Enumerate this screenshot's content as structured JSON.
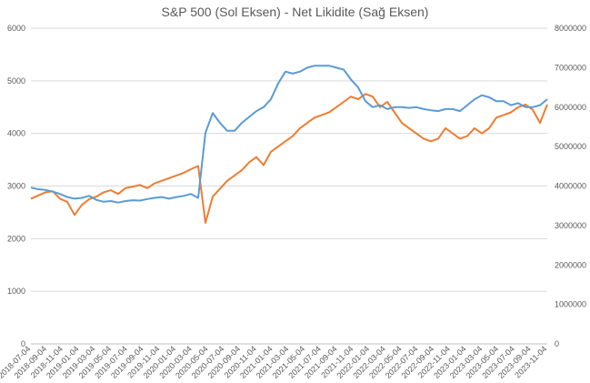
{
  "chart_data": {
    "type": "line",
    "title": "S&P 500 (Sol Eksen) - Net Likidite (Sağ Eksen)",
    "xlabel": "",
    "ylabel": "",
    "y_left": {
      "range": [
        0,
        6000
      ],
      "ticks": [
        "0",
        "1000",
        "2000",
        "3000",
        "4000",
        "5000",
        "6000"
      ]
    },
    "y_right": {
      "range": [
        0,
        8000000
      ],
      "ticks": [
        "0",
        "1000000",
        "2000000",
        "3000000",
        "4000000",
        "5000000",
        "6000000",
        "7000000",
        "8000000"
      ]
    },
    "grid": true,
    "legend": "none",
    "x_ticks": [
      "2018-07-04",
      "2018-09-04",
      "2018-11-04",
      "2019-01-04",
      "2019-03-04",
      "2019-05-04",
      "2019-07-04",
      "2019-09-04",
      "2019-11-04",
      "2020-01-04",
      "2020-03-04",
      "2020-05-04",
      "2020-07-04",
      "2020-09-04",
      "2020-11-04",
      "2021-01-04",
      "2021-03-04",
      "2021-05-04",
      "2021-07-04",
      "2021-09-04",
      "2021-11-04",
      "2022-01-04",
      "2022-03-04",
      "2022-05-04",
      "2022-07-04",
      "2022-09-04",
      "2022-11-04",
      "2023-01-04",
      "2023-03-04",
      "2023-05-04",
      "2023-07-04",
      "2023-09-04",
      "2023-11-04"
    ],
    "series": [
      {
        "axis": "left",
        "color": "#ED7D31",
        "values": [
          2760,
          2820,
          2880,
          2900,
          2760,
          2700,
          2450,
          2640,
          2750,
          2800,
          2880,
          2920,
          2850,
          2960,
          2990,
          3020,
          2960,
          3050,
          3100,
          3150,
          3200,
          3250,
          3320,
          3380,
          2300,
          2800,
          2950,
          3100,
          3200,
          3300,
          3450,
          3550,
          3400,
          3650,
          3750,
          3850,
          3950,
          4100,
          4200,
          4300,
          4350,
          4400,
          4500,
          4600,
          4700,
          4650,
          4750,
          4700,
          4500,
          4600,
          4400,
          4200,
          4100,
          4000,
          3900,
          3850,
          3900,
          4100,
          4000,
          3900,
          3950,
          4100,
          4000,
          4100,
          4300,
          4350,
          4400,
          4500,
          4550,
          4450,
          4200,
          4550
        ]
      },
      {
        "axis": "right",
        "color": "#5B9BD5",
        "values": [
          3960000,
          3920000,
          3900000,
          3860000,
          3800000,
          3720000,
          3680000,
          3700000,
          3750000,
          3650000,
          3600000,
          3620000,
          3580000,
          3620000,
          3640000,
          3630000,
          3670000,
          3700000,
          3720000,
          3680000,
          3720000,
          3750000,
          3800000,
          3700000,
          5350000,
          5850000,
          5600000,
          5400000,
          5400000,
          5600000,
          5750000,
          5900000,
          6000000,
          6200000,
          6600000,
          6900000,
          6850000,
          6900000,
          7000000,
          7050000,
          7050000,
          7050000,
          7000000,
          6950000,
          6700000,
          6500000,
          6150000,
          6000000,
          6050000,
          5950000,
          6000000,
          6000000,
          5980000,
          6000000,
          5950000,
          5920000,
          5900000,
          5950000,
          5950000,
          5900000,
          6050000,
          6200000,
          6300000,
          6250000,
          6150000,
          6150000,
          6050000,
          6100000,
          6000000,
          6000000,
          6050000,
          6200000
        ]
      }
    ]
  }
}
